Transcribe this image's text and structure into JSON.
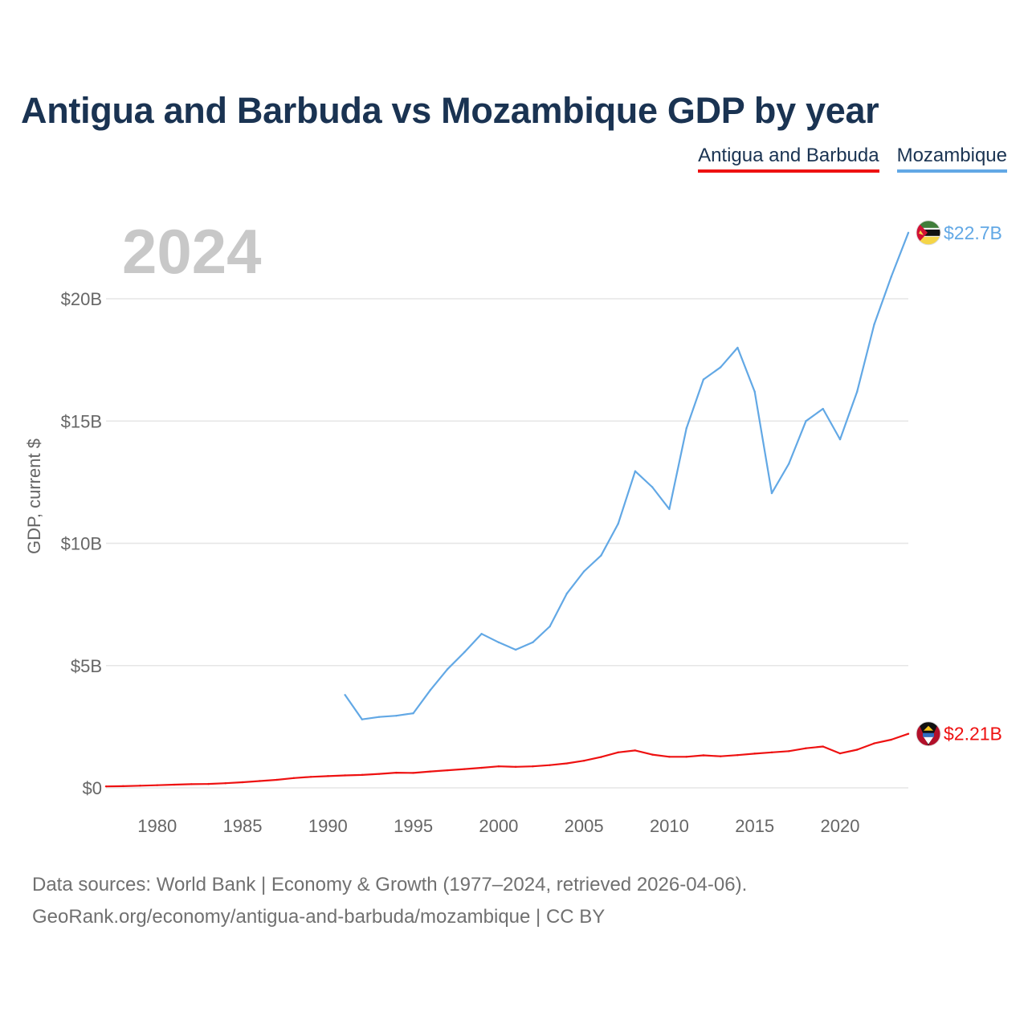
{
  "title": "Antigua and Barbuda vs Mozambique GDP by year",
  "year_label": "2024",
  "footer": {
    "line1": "Data sources: World Bank | Economy & Growth (1977–2024, retrieved 2026-04-06).",
    "line2": "GeoRank.org/economy/antigua-and-barbuda/mozambique | CC BY"
  },
  "colors": {
    "antigua": "#ee1111",
    "mozambique": "#62a8e5",
    "title": "#1a3352",
    "grid": "#e6e6e6",
    "axis_text": "#666666"
  },
  "chart_data": {
    "type": "line",
    "ylabel": "GDP, current $",
    "xlim": [
      1977,
      2024
    ],
    "ylim": [
      0,
      23
    ],
    "x_ticks": [
      1980,
      1985,
      1990,
      1995,
      2000,
      2005,
      2010,
      2015,
      2020
    ],
    "y_ticks": [
      {
        "value": 0,
        "label": "$0"
      },
      {
        "value": 5,
        "label": "$5B"
      },
      {
        "value": 10,
        "label": "$10B"
      },
      {
        "value": 15,
        "label": "$15B"
      },
      {
        "value": 20,
        "label": "$20B"
      }
    ],
    "series": [
      {
        "key": "antigua",
        "name": "Antigua and Barbuda",
        "end_label": "$2.21B",
        "flag_icon": "antigua-flag-icon",
        "x": [
          1977,
          1978,
          1979,
          1980,
          1981,
          1982,
          1983,
          1984,
          1985,
          1986,
          1987,
          1988,
          1989,
          1990,
          1991,
          1992,
          1993,
          1994,
          1995,
          1996,
          1997,
          1998,
          1999,
          2000,
          2001,
          2002,
          2003,
          2004,
          2005,
          2006,
          2007,
          2008,
          2009,
          2010,
          2011,
          2012,
          2013,
          2014,
          2015,
          2016,
          2017,
          2018,
          2019,
          2020,
          2021,
          2022,
          2023,
          2024
        ],
        "values": [
          0.06,
          0.07,
          0.09,
          0.11,
          0.13,
          0.15,
          0.16,
          0.19,
          0.23,
          0.28,
          0.33,
          0.4,
          0.45,
          0.48,
          0.51,
          0.53,
          0.57,
          0.62,
          0.61,
          0.67,
          0.72,
          0.77,
          0.82,
          0.88,
          0.86,
          0.88,
          0.93,
          1.0,
          1.11,
          1.26,
          1.45,
          1.53,
          1.36,
          1.27,
          1.27,
          1.33,
          1.29,
          1.34,
          1.4,
          1.45,
          1.5,
          1.62,
          1.69,
          1.41,
          1.56,
          1.82,
          1.97,
          2.21
        ]
      },
      {
        "key": "mozambique",
        "name": "Mozambique",
        "end_label": "$22.7B",
        "flag_icon": "mozambique-flag-icon",
        "x": [
          1991,
          1992,
          1993,
          1994,
          1995,
          1996,
          1997,
          1998,
          1999,
          2000,
          2001,
          2002,
          2003,
          2004,
          2005,
          2006,
          2007,
          2008,
          2009,
          2010,
          2011,
          2012,
          2013,
          2014,
          2015,
          2016,
          2017,
          2018,
          2019,
          2020,
          2021,
          2022,
          2023,
          2024
        ],
        "values": [
          3.8,
          2.8,
          2.9,
          2.95,
          3.05,
          4.0,
          4.85,
          5.55,
          6.3,
          5.95,
          5.65,
          5.95,
          6.6,
          7.95,
          8.85,
          9.5,
          10.8,
          12.95,
          12.3,
          11.4,
          14.7,
          16.7,
          17.2,
          18.0,
          16.2,
          12.05,
          13.25,
          15.0,
          15.5,
          14.25,
          16.2,
          18.95,
          20.9,
          22.7
        ]
      }
    ]
  }
}
